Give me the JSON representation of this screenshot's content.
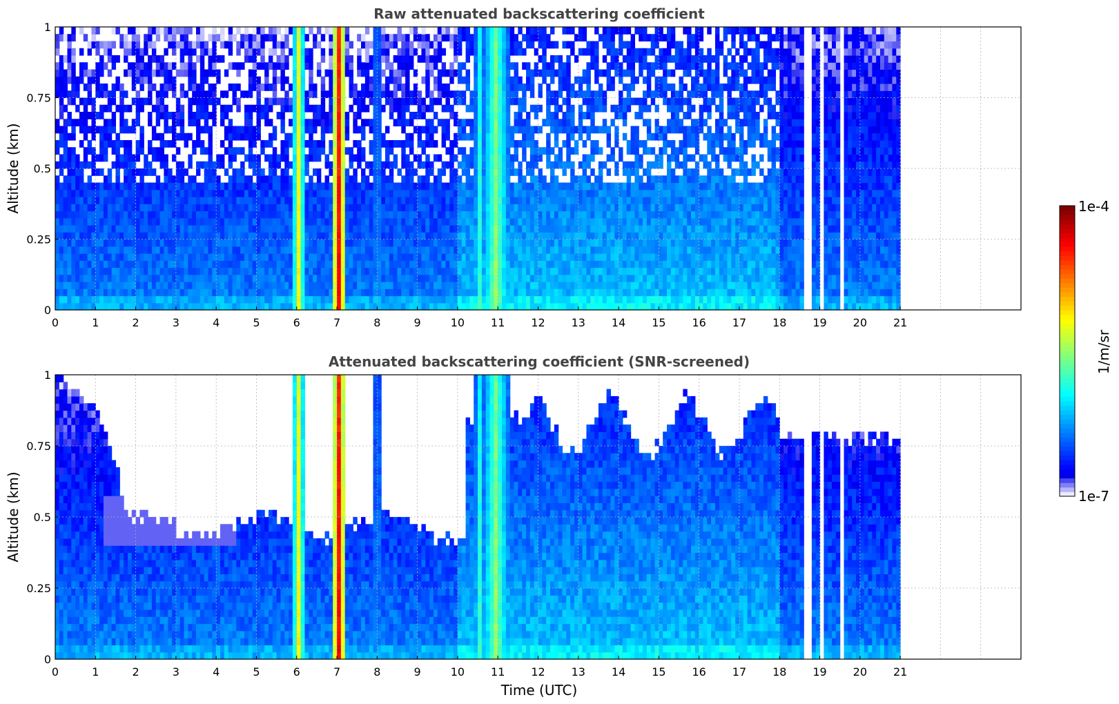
{
  "chart_data": [
    {
      "type": "heatmap",
      "title": "Raw attenuated backscattering coefficient",
      "xlabel": "",
      "ylabel": "Altitude (km)",
      "xlim": [
        0,
        24
      ],
      "ylim": [
        0,
        1
      ],
      "x_ticks": [
        0,
        1,
        2,
        3,
        4,
        5,
        6,
        7,
        8,
        9,
        10,
        11,
        12,
        13,
        14,
        15,
        16,
        17,
        18,
        19,
        20,
        21
      ],
      "y_ticks": [
        0,
        0.25,
        0.5,
        0.75,
        1
      ],
      "y_tick_labels": [
        "0",
        "0.25",
        "0.5",
        "0.75",
        "1"
      ],
      "grid": true,
      "data_extent_hours": [
        0,
        21
      ],
      "screening": "raw",
      "features": [
        {
          "time": 6.05,
          "intensity": 0.62,
          "width": 0.15
        },
        {
          "time": 7.05,
          "intensity": 0.88,
          "width": 0.18
        },
        {
          "time": 10.95,
          "intensity": 0.5,
          "width": 0.35
        },
        {
          "time": 10.55,
          "intensity": 0.4,
          "width": 0.15
        },
        {
          "time": 8.0,
          "intensity": 0.3,
          "width": 0.1
        }
      ],
      "gaps_hours": [
        18.65,
        18.72,
        19.05,
        19.55,
        20.2
      ]
    },
    {
      "type": "heatmap",
      "title": "Attenuated backscattering coefficient (SNR-screened)",
      "xlabel": "Time (UTC)",
      "ylabel": "Altitude (km)",
      "xlim": [
        0,
        24
      ],
      "ylim": [
        0,
        1
      ],
      "x_ticks": [
        0,
        1,
        2,
        3,
        4,
        5,
        6,
        7,
        8,
        9,
        10,
        11,
        12,
        13,
        14,
        15,
        16,
        17,
        18,
        19,
        20,
        21
      ],
      "y_ticks": [
        0,
        0.25,
        0.5,
        0.75,
        1
      ],
      "y_tick_labels": [
        "0",
        "0.25",
        "0.5",
        "0.75",
        "1"
      ],
      "grid": true,
      "data_extent_hours": [
        0,
        21
      ],
      "screening": "snr",
      "features": [
        {
          "time": 6.05,
          "intensity": 0.62,
          "width": 0.15
        },
        {
          "time": 7.05,
          "intensity": 0.88,
          "width": 0.18
        },
        {
          "time": 10.95,
          "intensity": 0.5,
          "width": 0.35
        },
        {
          "time": 10.55,
          "intensity": 0.4,
          "width": 0.15
        },
        {
          "time": 8.0,
          "intensity": 0.3,
          "width": 0.1
        }
      ],
      "gaps_hours": [
        18.65,
        18.72,
        19.05,
        19.55,
        20.2
      ]
    }
  ],
  "colorbar": {
    "min_label": "1e-7",
    "max_label": "1e-4",
    "label": "1/m/sr",
    "colormap": "jet (white at low end)"
  },
  "colors": {
    "title": "#444444",
    "grid": "#b0b0b0",
    "axes": "#000000"
  }
}
